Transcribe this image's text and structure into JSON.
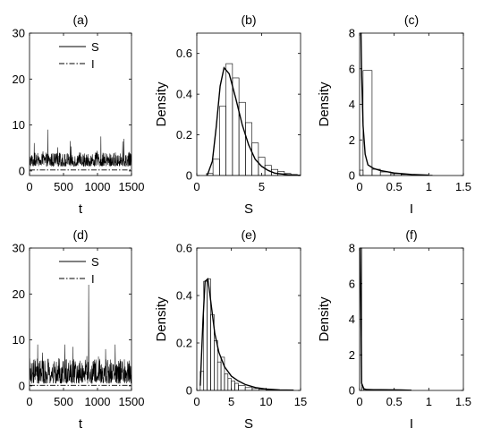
{
  "chart_data": [
    {
      "panel": "(a)",
      "type": "line",
      "title": "(a)",
      "xlabel": "t",
      "ylabel": "",
      "xlim": [
        0,
        1500
      ],
      "ylim": [
        -1,
        30
      ],
      "xticks": [
        0,
        500,
        1000,
        1500
      ],
      "yticks": [
        0,
        10,
        20,
        30
      ],
      "legend": {
        "placement": "top-center",
        "entries": [
          "S",
          "I"
        ]
      },
      "series": [
        {
          "name": "S",
          "style": "solid",
          "mean": 2.2,
          "spread": [
            1,
            4
          ],
          "peaks": [
            [
              270,
              9
            ],
            [
              600,
              6.5
            ],
            [
              1050,
              7.5
            ],
            [
              1390,
              7
            ]
          ]
        },
        {
          "name": "I",
          "style": "dashdot",
          "mean": 0.2
        }
      ]
    },
    {
      "panel": "(b)",
      "type": "bar",
      "title": "(b)",
      "xlabel": "S",
      "ylabel": "Density",
      "xlim": [
        0,
        8
      ],
      "ylim": [
        0,
        0.7
      ],
      "xticks": [
        0,
        5
      ],
      "yticks": [
        0,
        0.2,
        0.4,
        0.6
      ],
      "bins": {
        "edges": [
          0.75,
          1.25,
          1.75,
          2.25,
          2.75,
          3.25,
          3.75,
          4.25,
          4.75,
          5.25,
          5.75,
          6.25,
          6.75,
          7.25,
          7.75,
          8.0
        ],
        "values": [
          0.01,
          0.08,
          0.34,
          0.55,
          0.48,
          0.36,
          0.26,
          0.16,
          0.09,
          0.05,
          0.03,
          0.02,
          0.01,
          0.005,
          0.003
        ]
      },
      "density_curve": {
        "x": [
          0.8,
          1.2,
          1.5,
          1.8,
          2.1,
          2.5,
          3.0,
          3.5,
          4.0,
          4.5,
          5.0,
          5.5,
          6.0,
          7.0,
          8.0
        ],
        "y": [
          0,
          0.07,
          0.24,
          0.44,
          0.53,
          0.5,
          0.38,
          0.25,
          0.15,
          0.08,
          0.045,
          0.025,
          0.012,
          0.004,
          0.001
        ]
      }
    },
    {
      "panel": "(c)",
      "type": "bar",
      "title": "(c)",
      "xlabel": "I",
      "ylabel": "Density",
      "xlim": [
        0,
        1.5
      ],
      "ylim": [
        0,
        8
      ],
      "xticks": [
        0,
        0.5,
        1,
        1.5
      ],
      "yticks": [
        0,
        2,
        4,
        6,
        8
      ],
      "bins": {
        "edges": [
          0,
          0.05,
          0.18,
          0.3,
          0.45,
          0.6,
          0.75,
          0.9,
          1.05
        ],
        "values": [
          0.3,
          5.9,
          0.35,
          0.2,
          0.1,
          0.06,
          0.03,
          0.02
        ]
      },
      "density_curve": {
        "x": [
          0.02,
          0.03,
          0.05,
          0.08,
          0.12,
          0.2,
          0.3,
          0.5,
          0.75,
          1.0
        ],
        "y": [
          8.0,
          5.6,
          2.8,
          1.2,
          0.6,
          0.4,
          0.28,
          0.14,
          0.06,
          0.02
        ]
      }
    },
    {
      "panel": "(d)",
      "type": "line",
      "title": "(d)",
      "xlabel": "t",
      "ylabel": "",
      "xlim": [
        0,
        1500
      ],
      "ylim": [
        -1,
        30
      ],
      "xticks": [
        0,
        500,
        1000,
        1500
      ],
      "yticks": [
        0,
        10,
        20,
        30
      ],
      "legend": {
        "placement": "top-center",
        "entries": [
          "S",
          "I"
        ]
      },
      "series": [
        {
          "name": "S",
          "style": "solid",
          "mean": 2.4,
          "spread": [
            0.5,
            6
          ],
          "peaks": [
            [
              870,
              22
            ],
            [
              120,
              9
            ],
            [
              520,
              9
            ],
            [
              640,
              8.5
            ],
            [
              1120,
              8
            ],
            [
              1260,
              9
            ]
          ]
        },
        {
          "name": "I",
          "style": "dashdot",
          "mean": 0.1
        }
      ]
    },
    {
      "panel": "(e)",
      "type": "bar",
      "title": "(e)",
      "xlabel": "S",
      "ylabel": "Density",
      "xlim": [
        0,
        15
      ],
      "ylim": [
        0,
        0.6
      ],
      "xticks": [
        0,
        5,
        10,
        15
      ],
      "yticks": [
        0,
        0.2,
        0.4,
        0.6
      ],
      "bins": {
        "edges": [
          0.5,
          1.0,
          1.5,
          2.0,
          2.5,
          3.0,
          3.5,
          4.0,
          4.5,
          5.0,
          5.5,
          6.0,
          7.0,
          8.0,
          9.0,
          10.0,
          11.0,
          12.0
        ],
        "values": [
          0.08,
          0.46,
          0.47,
          0.32,
          0.21,
          0.12,
          0.14,
          0.07,
          0.05,
          0.04,
          0.03,
          0.02,
          0.012,
          0.008,
          0.005,
          0.003,
          0.002
        ]
      },
      "density_curve": {
        "x": [
          0.5,
          0.9,
          1.2,
          1.6,
          2.0,
          2.6,
          3.2,
          4.0,
          5.0,
          6.0,
          7.0,
          8.5,
          10.0,
          12.0,
          14.0
        ],
        "y": [
          0.02,
          0.3,
          0.46,
          0.47,
          0.38,
          0.24,
          0.16,
          0.1,
          0.06,
          0.04,
          0.025,
          0.012,
          0.006,
          0.002,
          0.001
        ]
      }
    },
    {
      "panel": "(f)",
      "type": "bar",
      "title": "(f)",
      "xlabel": "I",
      "ylabel": "Density",
      "xlim": [
        0,
        1.5
      ],
      "ylim": [
        0,
        8
      ],
      "xticks": [
        0,
        0.5,
        1,
        1.5
      ],
      "yticks": [
        0,
        2,
        4,
        6,
        8
      ],
      "bins": {
        "edges": [
          0,
          0.03,
          0.06,
          0.1,
          0.2,
          0.3,
          0.4,
          0.5,
          0.6
        ],
        "values": [
          8.0,
          0.15,
          0.05,
          0.05,
          0.04,
          0.04,
          0.03,
          0.03
        ]
      },
      "density_curve": {
        "x": [
          0.01,
          0.03,
          0.06,
          0.1,
          0.2,
          0.3,
          0.45,
          0.6,
          0.75
        ],
        "y": [
          8.0,
          0.4,
          0.1,
          0.05,
          0.04,
          0.04,
          0.035,
          0.03,
          0.01
        ]
      }
    }
  ]
}
